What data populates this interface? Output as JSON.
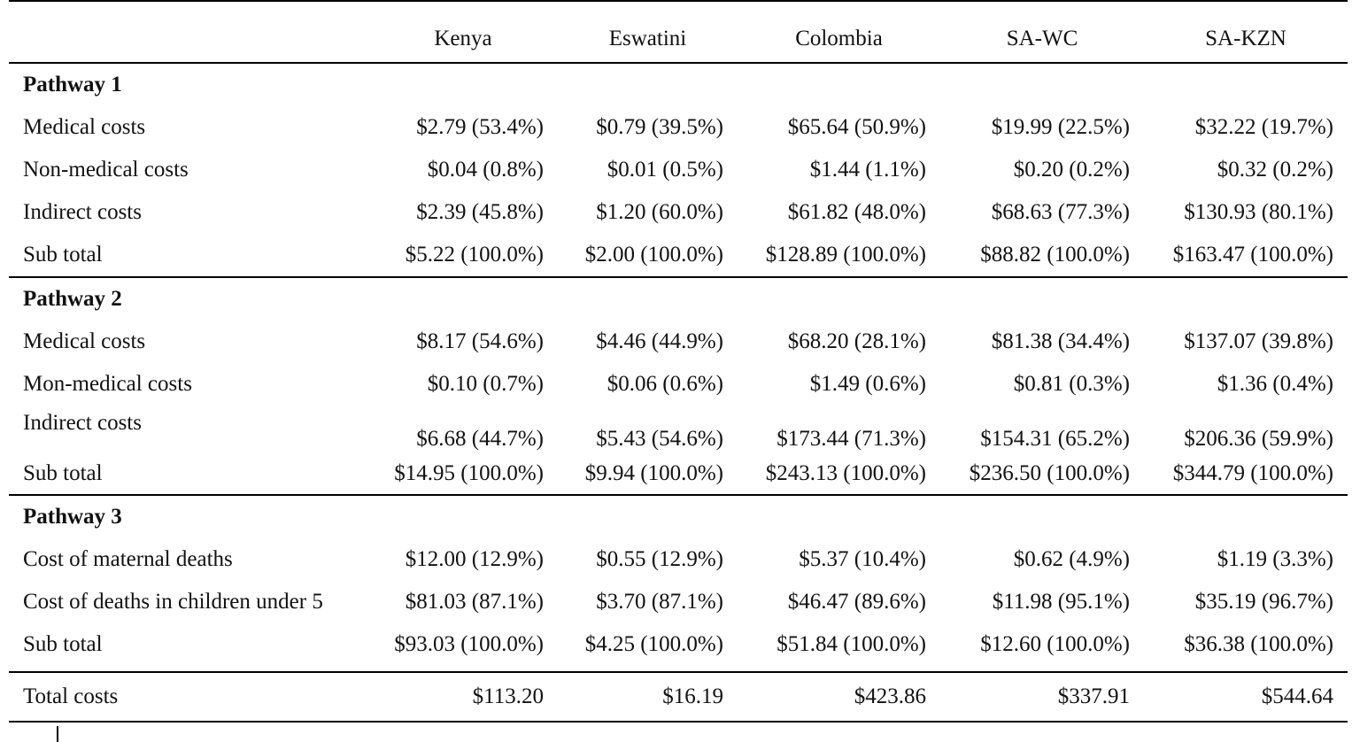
{
  "header": {
    "row_label": "",
    "columns": [
      "Kenya",
      "Eswatini",
      "Colombia",
      "SA-WC",
      "SA-KZN"
    ]
  },
  "sections": [
    {
      "title": "Pathway 1",
      "rows": [
        {
          "label": "Medical costs",
          "values": [
            "$2.79 (53.4%)",
            "$0.79 (39.5%)",
            "$65.64 (50.9%)",
            "$19.99 (22.5%)",
            "$32.22 (19.7%)"
          ]
        },
        {
          "label": "Non-medical costs",
          "values": [
            "$0.04 (0.8%)",
            "$0.01 (0.5%)",
            "$1.44 (1.1%)",
            "$0.20 (0.2%)",
            "$0.32 (0.2%)"
          ]
        },
        {
          "label": "Indirect costs",
          "values": [
            "$2.39 (45.8%)",
            "$1.20 (60.0%)",
            "$61.82 (48.0%)",
            "$68.63 (77.3%)",
            "$130.93 (80.1%)"
          ]
        },
        {
          "label": "Sub total",
          "values": [
            "$5.22 (100.0%)",
            "$2.00 (100.0%)",
            "$128.89 (100.0%)",
            "$88.82 (100.0%)",
            "$163.47 (100.0%)"
          ]
        }
      ]
    },
    {
      "title": "Pathway 2",
      "rows": [
        {
          "label": "Medical costs",
          "values": [
            "$8.17 (54.6%)",
            "$4.46 (44.9%)",
            "$68.20 (28.1%)",
            "$81.38 (34.4%)",
            "$137.07 (39.8%)"
          ]
        },
        {
          "label": "Mon-medical costs",
          "values": [
            "$0.10 (0.7%)",
            "$0.06 (0.6%)",
            "$1.49 (0.6%)",
            "$0.81 (0.3%)",
            "$1.36 (0.4%)"
          ]
        },
        {
          "label": "Indirect costs",
          "values": [
            "$6.68 (44.7%)",
            "$5.43 (54.6%)",
            "$173.44 (71.3%)",
            "$154.31 (65.2%)",
            "$206.36 (59.9%)"
          ]
        },
        {
          "label": "Sub total",
          "values": [
            "$14.95 (100.0%)",
            "$9.94 (100.0%)",
            "$243.13 (100.0%)",
            "$236.50 (100.0%)",
            "$344.79 (100.0%)"
          ]
        }
      ]
    },
    {
      "title": "Pathway 3",
      "rows": [
        {
          "label": "Cost of maternal deaths",
          "values": [
            "$12.00 (12.9%)",
            "$0.55 (12.9%)",
            "$5.37 (10.4%)",
            "$0.62 (4.9%)",
            "$1.19 (3.3%)"
          ]
        },
        {
          "label": "Cost of deaths in children under 5",
          "values": [
            "$81.03 (87.1%)",
            "$3.70 (87.1%)",
            "$46.47 (89.6%)",
            "$11.98 (95.1%)",
            "$35.19 (96.7%)"
          ]
        },
        {
          "label": "Sub total",
          "values": [
            "$93.03 (100.0%)",
            "$4.25 (100.0%)",
            "$51.84 (100.0%)",
            "$12.60 (100.0%)",
            "$36.38 (100.0%)"
          ]
        }
      ]
    }
  ],
  "total": {
    "label": "Total costs",
    "values": [
      "$113.20",
      "$16.19",
      "$423.86",
      "$337.91",
      "$544.64"
    ]
  }
}
